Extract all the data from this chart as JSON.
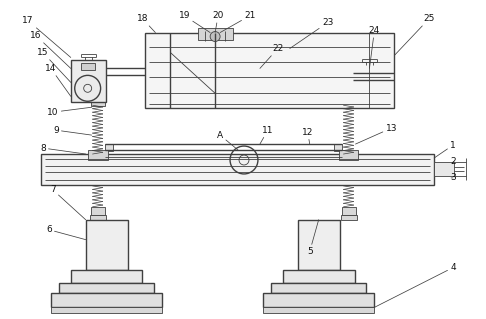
{
  "bg_color": "#ffffff",
  "line_color": "#404040",
  "figsize": [
    4.86,
    3.19
  ],
  "dpi": 100,
  "arrow_color": "#404040",
  "label_fontsize": 6.5
}
